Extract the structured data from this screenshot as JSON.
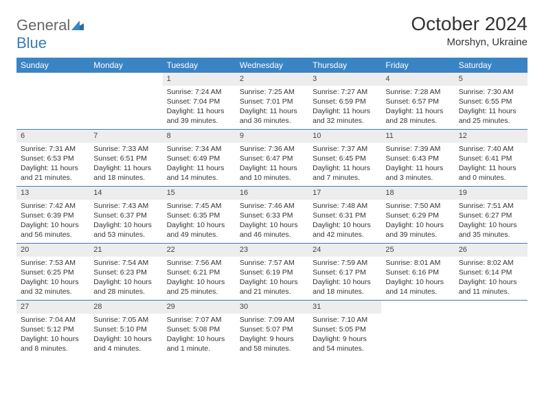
{
  "brand": {
    "part1": "General",
    "part2": "Blue"
  },
  "title": "October 2024",
  "location": "Morshyn, Ukraine",
  "colors": {
    "header_bg": "#3a84c4",
    "header_text": "#ffffff",
    "daynum_bg": "#ededed",
    "border": "#3a7ab8",
    "text": "#333333"
  },
  "day_headers": [
    "Sunday",
    "Monday",
    "Tuesday",
    "Wednesday",
    "Thursday",
    "Friday",
    "Saturday"
  ],
  "weeks": [
    [
      {
        "num": "",
        "lines": [
          "",
          "",
          "",
          ""
        ]
      },
      {
        "num": "",
        "lines": [
          "",
          "",
          "",
          ""
        ]
      },
      {
        "num": "1",
        "lines": [
          "Sunrise: 7:24 AM",
          "Sunset: 7:04 PM",
          "Daylight: 11 hours",
          "and 39 minutes."
        ]
      },
      {
        "num": "2",
        "lines": [
          "Sunrise: 7:25 AM",
          "Sunset: 7:01 PM",
          "Daylight: 11 hours",
          "and 36 minutes."
        ]
      },
      {
        "num": "3",
        "lines": [
          "Sunrise: 7:27 AM",
          "Sunset: 6:59 PM",
          "Daylight: 11 hours",
          "and 32 minutes."
        ]
      },
      {
        "num": "4",
        "lines": [
          "Sunrise: 7:28 AM",
          "Sunset: 6:57 PM",
          "Daylight: 11 hours",
          "and 28 minutes."
        ]
      },
      {
        "num": "5",
        "lines": [
          "Sunrise: 7:30 AM",
          "Sunset: 6:55 PM",
          "Daylight: 11 hours",
          "and 25 minutes."
        ]
      }
    ],
    [
      {
        "num": "6",
        "lines": [
          "Sunrise: 7:31 AM",
          "Sunset: 6:53 PM",
          "Daylight: 11 hours",
          "and 21 minutes."
        ]
      },
      {
        "num": "7",
        "lines": [
          "Sunrise: 7:33 AM",
          "Sunset: 6:51 PM",
          "Daylight: 11 hours",
          "and 18 minutes."
        ]
      },
      {
        "num": "8",
        "lines": [
          "Sunrise: 7:34 AM",
          "Sunset: 6:49 PM",
          "Daylight: 11 hours",
          "and 14 minutes."
        ]
      },
      {
        "num": "9",
        "lines": [
          "Sunrise: 7:36 AM",
          "Sunset: 6:47 PM",
          "Daylight: 11 hours",
          "and 10 minutes."
        ]
      },
      {
        "num": "10",
        "lines": [
          "Sunrise: 7:37 AM",
          "Sunset: 6:45 PM",
          "Daylight: 11 hours",
          "and 7 minutes."
        ]
      },
      {
        "num": "11",
        "lines": [
          "Sunrise: 7:39 AM",
          "Sunset: 6:43 PM",
          "Daylight: 11 hours",
          "and 3 minutes."
        ]
      },
      {
        "num": "12",
        "lines": [
          "Sunrise: 7:40 AM",
          "Sunset: 6:41 PM",
          "Daylight: 11 hours",
          "and 0 minutes."
        ]
      }
    ],
    [
      {
        "num": "13",
        "lines": [
          "Sunrise: 7:42 AM",
          "Sunset: 6:39 PM",
          "Daylight: 10 hours",
          "and 56 minutes."
        ]
      },
      {
        "num": "14",
        "lines": [
          "Sunrise: 7:43 AM",
          "Sunset: 6:37 PM",
          "Daylight: 10 hours",
          "and 53 minutes."
        ]
      },
      {
        "num": "15",
        "lines": [
          "Sunrise: 7:45 AM",
          "Sunset: 6:35 PM",
          "Daylight: 10 hours",
          "and 49 minutes."
        ]
      },
      {
        "num": "16",
        "lines": [
          "Sunrise: 7:46 AM",
          "Sunset: 6:33 PM",
          "Daylight: 10 hours",
          "and 46 minutes."
        ]
      },
      {
        "num": "17",
        "lines": [
          "Sunrise: 7:48 AM",
          "Sunset: 6:31 PM",
          "Daylight: 10 hours",
          "and 42 minutes."
        ]
      },
      {
        "num": "18",
        "lines": [
          "Sunrise: 7:50 AM",
          "Sunset: 6:29 PM",
          "Daylight: 10 hours",
          "and 39 minutes."
        ]
      },
      {
        "num": "19",
        "lines": [
          "Sunrise: 7:51 AM",
          "Sunset: 6:27 PM",
          "Daylight: 10 hours",
          "and 35 minutes."
        ]
      }
    ],
    [
      {
        "num": "20",
        "lines": [
          "Sunrise: 7:53 AM",
          "Sunset: 6:25 PM",
          "Daylight: 10 hours",
          "and 32 minutes."
        ]
      },
      {
        "num": "21",
        "lines": [
          "Sunrise: 7:54 AM",
          "Sunset: 6:23 PM",
          "Daylight: 10 hours",
          "and 28 minutes."
        ]
      },
      {
        "num": "22",
        "lines": [
          "Sunrise: 7:56 AM",
          "Sunset: 6:21 PM",
          "Daylight: 10 hours",
          "and 25 minutes."
        ]
      },
      {
        "num": "23",
        "lines": [
          "Sunrise: 7:57 AM",
          "Sunset: 6:19 PM",
          "Daylight: 10 hours",
          "and 21 minutes."
        ]
      },
      {
        "num": "24",
        "lines": [
          "Sunrise: 7:59 AM",
          "Sunset: 6:17 PM",
          "Daylight: 10 hours",
          "and 18 minutes."
        ]
      },
      {
        "num": "25",
        "lines": [
          "Sunrise: 8:01 AM",
          "Sunset: 6:16 PM",
          "Daylight: 10 hours",
          "and 14 minutes."
        ]
      },
      {
        "num": "26",
        "lines": [
          "Sunrise: 8:02 AM",
          "Sunset: 6:14 PM",
          "Daylight: 10 hours",
          "and 11 minutes."
        ]
      }
    ],
    [
      {
        "num": "27",
        "lines": [
          "Sunrise: 7:04 AM",
          "Sunset: 5:12 PM",
          "Daylight: 10 hours",
          "and 8 minutes."
        ]
      },
      {
        "num": "28",
        "lines": [
          "Sunrise: 7:05 AM",
          "Sunset: 5:10 PM",
          "Daylight: 10 hours",
          "and 4 minutes."
        ]
      },
      {
        "num": "29",
        "lines": [
          "Sunrise: 7:07 AM",
          "Sunset: 5:08 PM",
          "Daylight: 10 hours",
          "and 1 minute."
        ]
      },
      {
        "num": "30",
        "lines": [
          "Sunrise: 7:09 AM",
          "Sunset: 5:07 PM",
          "Daylight: 9 hours",
          "and 58 minutes."
        ]
      },
      {
        "num": "31",
        "lines": [
          "Sunrise: 7:10 AM",
          "Sunset: 5:05 PM",
          "Daylight: 9 hours",
          "and 54 minutes."
        ]
      },
      {
        "num": "",
        "lines": [
          "",
          "",
          "",
          ""
        ]
      },
      {
        "num": "",
        "lines": [
          "",
          "",
          "",
          ""
        ]
      }
    ]
  ]
}
